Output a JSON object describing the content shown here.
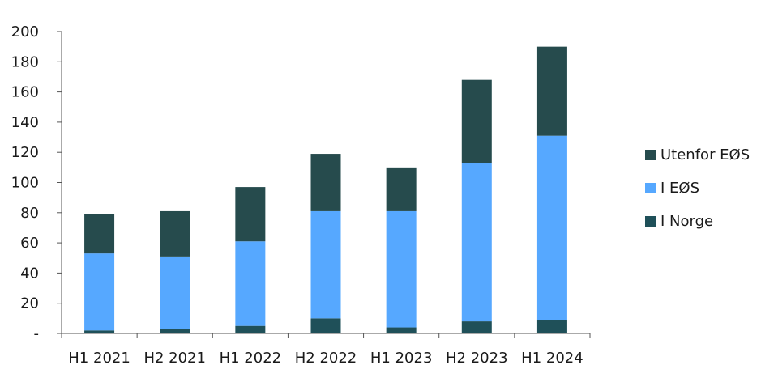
{
  "chart_data": {
    "type": "bar",
    "stacked": true,
    "categories": [
      "H1 2021",
      "H2 2021",
      "H1 2022",
      "H2 2022",
      "H1 2023",
      "H2 2023",
      "H1 2024"
    ],
    "series": [
      {
        "name": "I Norge",
        "color": "#1f5059",
        "values": [
          2,
          3,
          5,
          10,
          4,
          8,
          9
        ]
      },
      {
        "name": "I EØS",
        "color": "#56a8ff",
        "values": [
          51,
          48,
          56,
          71,
          77,
          105,
          122
        ]
      },
      {
        "name": "Utenfor EØS",
        "color": "#264b4d",
        "values": [
          26,
          30,
          36,
          38,
          29,
          55,
          59
        ]
      }
    ],
    "ylim": [
      0,
      200
    ],
    "yticks": [
      0,
      20,
      40,
      60,
      80,
      100,
      120,
      140,
      160,
      180,
      200
    ],
    "ytick_labels": [
      "-",
      "20",
      "40",
      "60",
      "80",
      "100",
      "120",
      "140",
      "160",
      "180",
      "200"
    ],
    "legend_order": [
      "Utenfor EØS",
      "I EØS",
      "I Norge"
    ],
    "legend_position": "right",
    "grid": false
  }
}
